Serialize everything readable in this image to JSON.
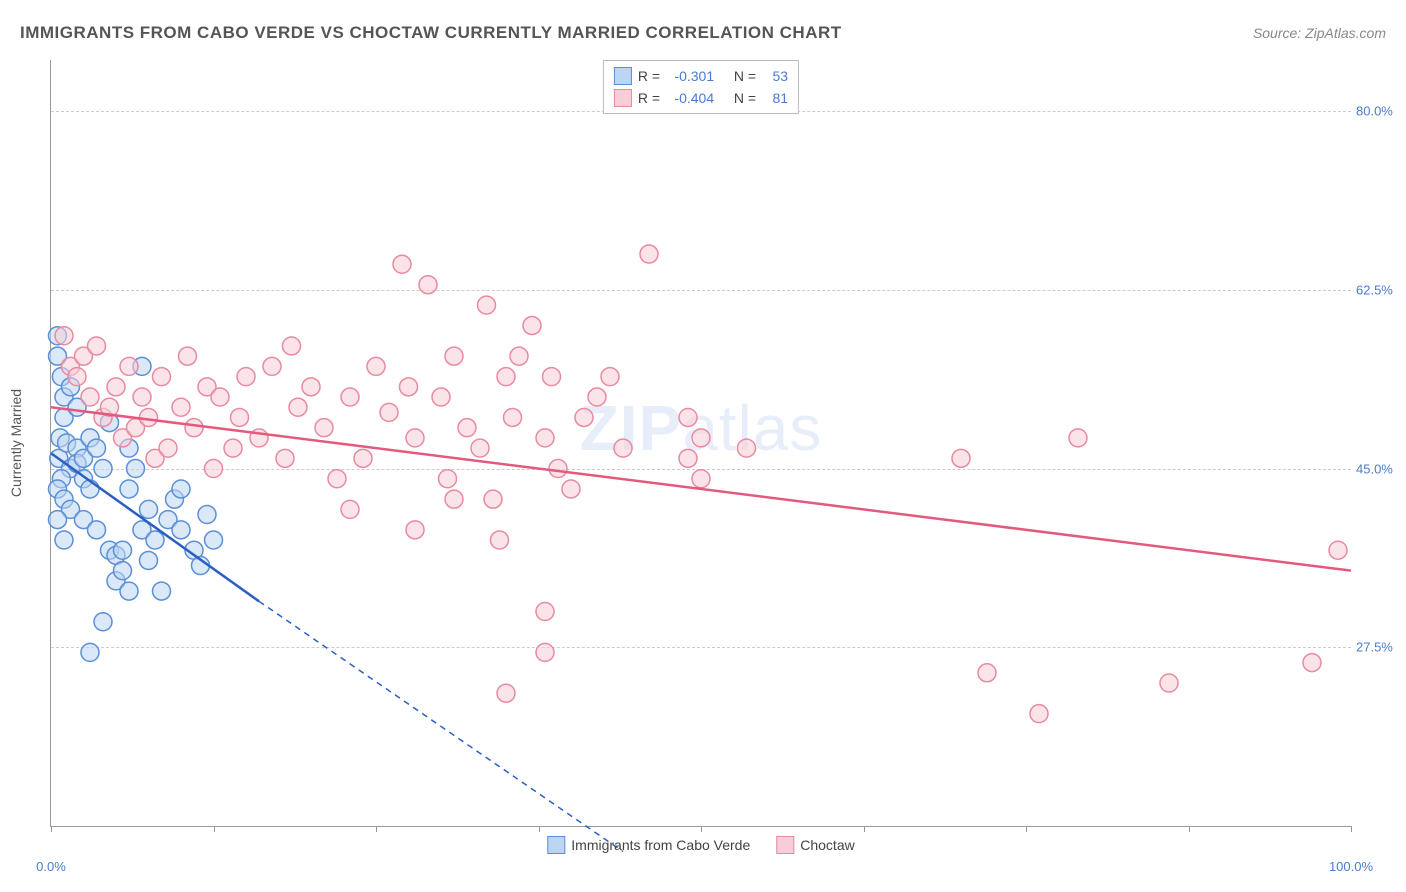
{
  "header": {
    "title": "IMMIGRANTS FROM CABO VERDE VS CHOCTAW CURRENTLY MARRIED CORRELATION CHART",
    "source": "Source: ZipAtlas.com"
  },
  "watermark": {
    "bold": "ZIP",
    "rest": "atlas"
  },
  "chart": {
    "type": "scatter",
    "yaxis_title": "Currently Married",
    "xlim": [
      0,
      100
    ],
    "ylim": [
      10,
      85
    ],
    "yticks": [
      27.5,
      45.0,
      62.5,
      80.0
    ],
    "ytick_labels": [
      "27.5%",
      "45.0%",
      "62.5%",
      "80.0%"
    ],
    "xticks": [
      0,
      12.5,
      25,
      37.5,
      50,
      62.5,
      75,
      87.5,
      100
    ],
    "xtick_labels_shown": {
      "0": "0.0%",
      "100": "100.0%"
    },
    "background_color": "#ffffff",
    "grid_color": "#cccccc",
    "axis_color": "#999999",
    "label_color": "#4a7bd0",
    "marker_radius": 9,
    "marker_stroke_width": 1.5,
    "trend_line_width": 2.5,
    "series": [
      {
        "name": "Immigrants from Cabo Verde",
        "fill": "#bcd5f2",
        "stroke": "#5b8fd6",
        "line_color": "#2b5fc1",
        "R": "-0.301",
        "N": "53",
        "trend": {
          "x1": 0,
          "y1": 46.5,
          "x2": 16,
          "y2": 32.0,
          "extend_to_x": 44,
          "extend_to_y": 7.5
        },
        "points": [
          [
            0.5,
            58
          ],
          [
            0.5,
            56
          ],
          [
            0.8,
            54
          ],
          [
            1,
            52
          ],
          [
            1,
            50
          ],
          [
            0.7,
            48
          ],
          [
            0.6,
            46
          ],
          [
            1.2,
            47.5
          ],
          [
            1.5,
            45
          ],
          [
            0.8,
            44
          ],
          [
            0.5,
            43
          ],
          [
            1,
            42
          ],
          [
            1.5,
            41
          ],
          [
            2,
            47
          ],
          [
            2,
            45.5
          ],
          [
            2.5,
            46
          ],
          [
            2.5,
            44
          ],
          [
            2.5,
            40
          ],
          [
            3,
            48
          ],
          [
            3,
            43
          ],
          [
            3.5,
            39
          ],
          [
            3.5,
            47
          ],
          [
            4,
            45
          ],
          [
            4.5,
            49.5
          ],
          [
            4.5,
            37
          ],
          [
            5,
            36.5
          ],
          [
            5,
            34
          ],
          [
            5.5,
            35
          ],
          [
            5.5,
            37
          ],
          [
            6,
            47
          ],
          [
            6,
            43
          ],
          [
            6.5,
            45
          ],
          [
            7,
            55
          ],
          [
            7,
            39
          ],
          [
            7.5,
            41
          ],
          [
            7.5,
            36
          ],
          [
            8,
            38
          ],
          [
            8.5,
            33
          ],
          [
            9,
            40
          ],
          [
            9.5,
            42
          ],
          [
            10,
            39
          ],
          [
            10,
            43
          ],
          [
            11,
            37
          ],
          [
            11.5,
            35.5
          ],
          [
            12,
            40.5
          ],
          [
            12.5,
            38
          ],
          [
            1.5,
            53
          ],
          [
            2,
            51
          ],
          [
            6,
            33
          ],
          [
            3,
            27
          ],
          [
            4,
            30
          ],
          [
            0.5,
            40
          ],
          [
            1,
            38
          ]
        ]
      },
      {
        "name": "Choctaw",
        "fill": "#f7cdd7",
        "stroke": "#e88aa0",
        "line_color": "#e35a7e",
        "R": "-0.404",
        "N": "81",
        "trend": {
          "x1": 0,
          "y1": 51.0,
          "x2": 100,
          "y2": 35.0
        },
        "points": [
          [
            1,
            58
          ],
          [
            1.5,
            55
          ],
          [
            2,
            54
          ],
          [
            2.5,
            56
          ],
          [
            3,
            52
          ],
          [
            3.5,
            57
          ],
          [
            4,
            50
          ],
          [
            4.5,
            51
          ],
          [
            5,
            53
          ],
          [
            5.5,
            48
          ],
          [
            6,
            55
          ],
          [
            6.5,
            49
          ],
          [
            7,
            52
          ],
          [
            7.5,
            50
          ],
          [
            8,
            46
          ],
          [
            8.5,
            54
          ],
          [
            9,
            47
          ],
          [
            10,
            51
          ],
          [
            10.5,
            56
          ],
          [
            11,
            49
          ],
          [
            12,
            53
          ],
          [
            12.5,
            45
          ],
          [
            13,
            52
          ],
          [
            14,
            47
          ],
          [
            14.5,
            50
          ],
          [
            15,
            54
          ],
          [
            16,
            48
          ],
          [
            17,
            55
          ],
          [
            18,
            46
          ],
          [
            18.5,
            57
          ],
          [
            19,
            51
          ],
          [
            20,
            53
          ],
          [
            21,
            49
          ],
          [
            22,
            44
          ],
          [
            23,
            52
          ],
          [
            24,
            46
          ],
          [
            25,
            55
          ],
          [
            26,
            50.5
          ],
          [
            27,
            65
          ],
          [
            27.5,
            53
          ],
          [
            28,
            48
          ],
          [
            29,
            63
          ],
          [
            30,
            52
          ],
          [
            30.5,
            44
          ],
          [
            31,
            56
          ],
          [
            32,
            49
          ],
          [
            33,
            47
          ],
          [
            33.5,
            61
          ],
          [
            34,
            42
          ],
          [
            35,
            54
          ],
          [
            35.5,
            50
          ],
          [
            36,
            56
          ],
          [
            37,
            59
          ],
          [
            38,
            48
          ],
          [
            38.5,
            54
          ],
          [
            39,
            45
          ],
          [
            40,
            43
          ],
          [
            41,
            50
          ],
          [
            42,
            52
          ],
          [
            43,
            54
          ],
          [
            44,
            47
          ],
          [
            35,
            23
          ],
          [
            38,
            31
          ],
          [
            38,
            27
          ],
          [
            46,
            66
          ],
          [
            49,
            50
          ],
          [
            49,
            46
          ],
          [
            50,
            44
          ],
          [
            50,
            48
          ],
          [
            53.5,
            47
          ],
          [
            70,
            46
          ],
          [
            72,
            25
          ],
          [
            76,
            21
          ],
          [
            79,
            48
          ],
          [
            86,
            24
          ],
          [
            97,
            26
          ],
          [
            99,
            37
          ],
          [
            23,
            41
          ],
          [
            28,
            39
          ],
          [
            31,
            42
          ],
          [
            34.5,
            38
          ]
        ]
      }
    ]
  },
  "legend_bottom": [
    {
      "label": "Immigrants from Cabo Verde",
      "fill": "#bcd5f2",
      "stroke": "#5b8fd6"
    },
    {
      "label": "Choctaw",
      "fill": "#f7cdd7",
      "stroke": "#e88aa0"
    }
  ]
}
